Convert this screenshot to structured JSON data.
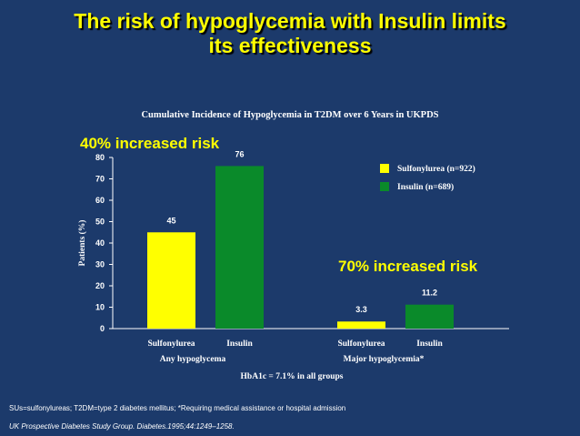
{
  "slide": {
    "title_line1": "The risk of hypoglycemia with Insulin limits",
    "title_line2": "its effectiveness",
    "callout_left": "40% increased risk",
    "callout_right": "70% increased risk",
    "footnote": "SUs=sulfonylureas; T2DM=type 2 diabetes mellitus; *Requiring medical assistance or hospital admission",
    "reference": "UK Prospective Diabetes Study Group. Diabetes.1995;44:1249–1258."
  },
  "colors": {
    "background": "#1c3a6b",
    "title": "#ffff00",
    "sulfonylurea": "#ffff00",
    "insulin": "#0a8a2a"
  },
  "chart_data": {
    "type": "bar",
    "title": "Cumulative Incidence of Hypoglycemia in T2DM over 6 Years in UKPDS",
    "ylabel": "Patients (%)",
    "xlabel": "HbA1c = 7.1% in all groups",
    "ylim": [
      0,
      80
    ],
    "yticks": [
      0,
      10,
      20,
      30,
      40,
      50,
      60,
      70,
      80
    ],
    "groups": [
      "Any hypoglycema",
      "Major hypoglycemia*"
    ],
    "categories": [
      "Sulfonylurea",
      "Insulin"
    ],
    "series": [
      {
        "name": "Sulfonylurea (n=922)",
        "values": [
          45,
          3.3
        ],
        "labels": [
          "45",
          "3.3"
        ]
      },
      {
        "name": "Insulin (n=689)",
        "values": [
          76,
          11.2
        ],
        "labels": [
          "76",
          "11.2"
        ]
      }
    ],
    "legend_position": "top-right",
    "grid": false
  }
}
